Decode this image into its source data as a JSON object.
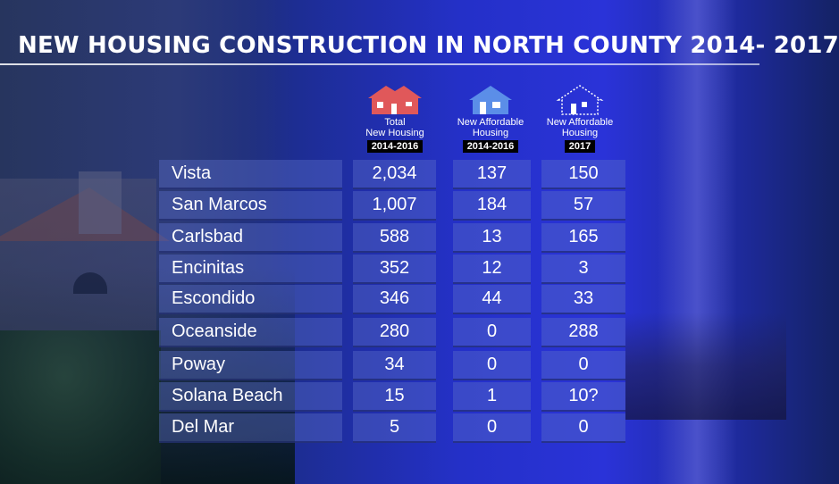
{
  "title": "NEW HOUSING CONSTRUCTION IN NORTH COUNTY 2014- 2017",
  "columns": [
    {
      "icon": "house-red-icon",
      "label_line1": "Total",
      "label_line2": "New Housing",
      "label_line3": "",
      "year": "2014-2016",
      "color": "#e0585a"
    },
    {
      "icon": "house-blue-icon",
      "label_line1": "New Affordable",
      "label_line2": "Housing",
      "label_line3": "",
      "year": "2014-2016",
      "color": "#5b8ee8"
    },
    {
      "icon": "house-outline-icon",
      "label_line1": "New Affordable",
      "label_line2": "Housing",
      "label_line3": "",
      "year": "2017",
      "color": "#ffffff"
    }
  ],
  "rows": [
    {
      "city": "Vista",
      "total": "2,034",
      "affordable_2014_2016": "137",
      "affordable_2017": "150"
    },
    {
      "city": "San Marcos",
      "total": "1,007",
      "affordable_2014_2016": "184",
      "affordable_2017": "57"
    },
    {
      "city": "Carlsbad",
      "total": "588",
      "affordable_2014_2016": "13",
      "affordable_2017": "165"
    },
    {
      "city": "Encinitas",
      "total": "352",
      "affordable_2014_2016": "12",
      "affordable_2017": "3"
    },
    {
      "city": "Escondido",
      "total": "346",
      "affordable_2014_2016": "44",
      "affordable_2017": "33"
    },
    {
      "city": "Oceanside",
      "total": "280",
      "affordable_2014_2016": "0",
      "affordable_2017": "288"
    },
    {
      "city": "Poway",
      "total": "34",
      "affordable_2014_2016": "0",
      "affordable_2017": "0"
    },
    {
      "city": "Solana Beach",
      "total": "15",
      "affordable_2014_2016": "1",
      "affordable_2017": "10?"
    },
    {
      "city": "Del Mar",
      "total": "5",
      "affordable_2014_2016": "0",
      "affordable_2017": "0"
    }
  ]
}
